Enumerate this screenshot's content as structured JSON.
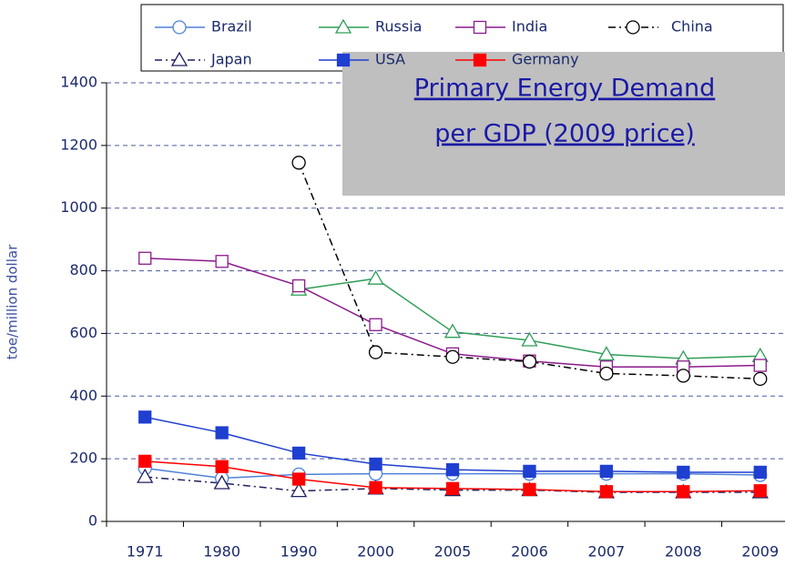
{
  "chart_data": {
    "type": "line",
    "title": [
      "Primary Energy Demand",
      "per GDP (2009 price)"
    ],
    "y_label": "toe/million dollar",
    "categories": [
      "1971",
      "1980",
      "1990",
      "2000",
      "2005",
      "2006",
      "2007",
      "2008",
      "2009"
    ],
    "ylim": [
      0,
      1400
    ],
    "yticks": [
      0,
      200,
      400,
      600,
      800,
      1000,
      1200,
      1400
    ],
    "grid": true,
    "series": [
      {
        "name": "Brazil",
        "color": "#4f81d9",
        "marker": "circle",
        "filled": false,
        "dash": "solid",
        "values": [
          170,
          138,
          150,
          152,
          152,
          152,
          152,
          152,
          148
        ]
      },
      {
        "name": "Russia",
        "color": "#2e9e58",
        "marker": "triangle",
        "filled": false,
        "dash": "solid",
        "values": [
          null,
          null,
          740,
          775,
          605,
          578,
          533,
          520,
          528
        ]
      },
      {
        "name": "India",
        "color": "#8b1a8b",
        "marker": "square",
        "filled": false,
        "dash": "solid",
        "values": [
          840,
          830,
          752,
          628,
          535,
          512,
          493,
          493,
          498
        ]
      },
      {
        "name": "China",
        "color": "#000000",
        "marker": "circle",
        "filled": false,
        "dash": "dashdot",
        "values": [
          null,
          null,
          1145,
          540,
          525,
          510,
          472,
          465,
          455
        ]
      },
      {
        "name": "Japan",
        "color": "#1f1f5f",
        "marker": "triangle",
        "filled": false,
        "dash": "dashdot",
        "values": [
          142,
          122,
          97,
          105,
          100,
          100,
          93,
          93,
          93
        ]
      },
      {
        "name": "USA",
        "color": "#1f3fd0",
        "marker": "square",
        "filled": true,
        "dash": "solid",
        "values": [
          333,
          283,
          218,
          183,
          165,
          160,
          160,
          157,
          157
        ]
      },
      {
        "name": "Germany",
        "color": "#ff0000",
        "marker": "square",
        "filled": true,
        "dash": "solid",
        "values": [
          192,
          175,
          135,
          108,
          105,
          102,
          95,
          95,
          98
        ]
      }
    ]
  }
}
